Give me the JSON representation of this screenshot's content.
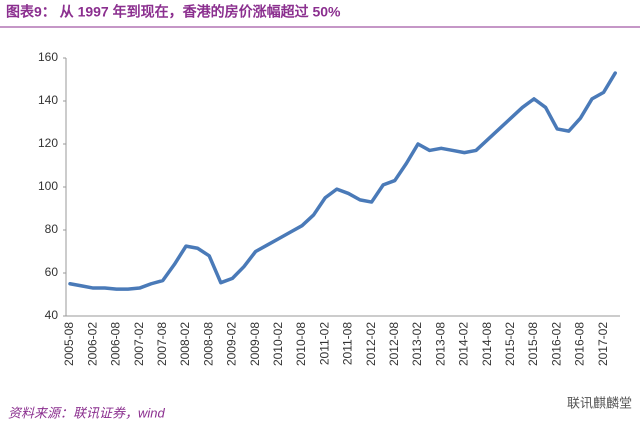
{
  "chart_data": {
    "type": "line",
    "title": "图表9：  从 1997 年到现在，香港的房价涨幅超过 50%",
    "source": "资料来源：联讯证券，wind",
    "watermark": "联讯麒麟堂",
    "categories": [
      "2005-08",
      null,
      "2006-02",
      null,
      "2006-08",
      null,
      "2007-02",
      null,
      "2007-08",
      null,
      "2008-02",
      null,
      "2008-08",
      null,
      "2009-02",
      null,
      "2009-08",
      null,
      "2010-02",
      null,
      "2010-08",
      null,
      "2011-02",
      null,
      "2011-08",
      null,
      "2012-02",
      null,
      "2012-08",
      null,
      "2013-02",
      null,
      "2013-08",
      null,
      "2014-02",
      null,
      "2014-08",
      null,
      "2015-02",
      null,
      "2015-08",
      null,
      "2016-02",
      null,
      "2016-08",
      null,
      "2017-02",
      null
    ],
    "values": [
      55,
      54,
      53,
      53,
      52.5,
      52.5,
      53,
      55,
      56.5,
      64,
      72.5,
      71.5,
      68,
      55.5,
      57.5,
      63,
      70,
      73,
      76,
      79,
      82,
      87,
      95,
      99,
      97,
      94,
      93,
      101,
      103,
      111,
      120,
      117,
      118,
      117,
      116,
      117,
      122,
      127,
      132,
      137,
      141,
      137,
      127,
      126,
      132,
      141,
      144,
      153
    ],
    "color": "#4a7ab8",
    "ylim": [
      40,
      160
    ],
    "yticks": [
      40,
      60,
      80,
      100,
      120,
      140,
      160
    ],
    "grid": false
  }
}
